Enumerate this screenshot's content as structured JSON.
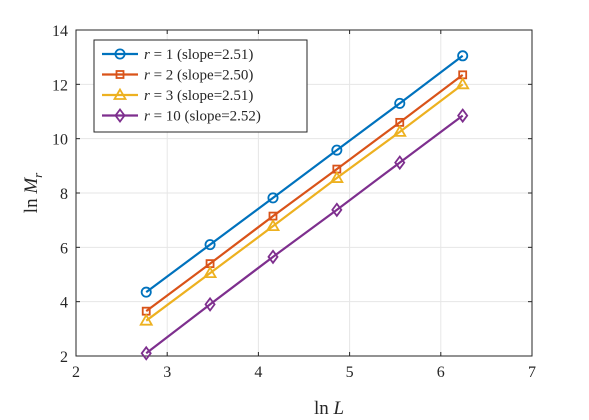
{
  "chart_data": {
    "type": "line",
    "title": "",
    "xlabel": "ln L",
    "ylabel": "ln M_r",
    "xlim": [
      2,
      7
    ],
    "ylim": [
      2,
      14
    ],
    "xticks": [
      2,
      3,
      4,
      5,
      6,
      7
    ],
    "yticks": [
      2,
      4,
      6,
      8,
      10,
      12,
      14
    ],
    "grid": true,
    "legend_position": "top-left",
    "x": [
      2.77,
      3.47,
      4.16,
      4.86,
      5.55,
      6.24
    ],
    "series": [
      {
        "name": "r = 1 (slope=2.51)",
        "color": "#0072BD",
        "marker": "circle",
        "values": [
          4.35,
          6.1,
          7.82,
          9.58,
          11.3,
          13.05
        ]
      },
      {
        "name": "r = 2 (slope=2.50)",
        "color": "#D95319",
        "marker": "square",
        "values": [
          3.65,
          5.4,
          7.15,
          8.88,
          10.6,
          12.35
        ]
      },
      {
        "name": "r = 3 (slope=2.51)",
        "color": "#EDB120",
        "marker": "triangle",
        "values": [
          3.3,
          5.05,
          6.78,
          8.55,
          10.25,
          12.0
        ]
      },
      {
        "name": "r = 10 (slope=2.52)",
        "color": "#7E2F8E",
        "marker": "diamond",
        "values": [
          2.1,
          3.9,
          5.65,
          7.38,
          9.12,
          10.85
        ]
      }
    ]
  }
}
